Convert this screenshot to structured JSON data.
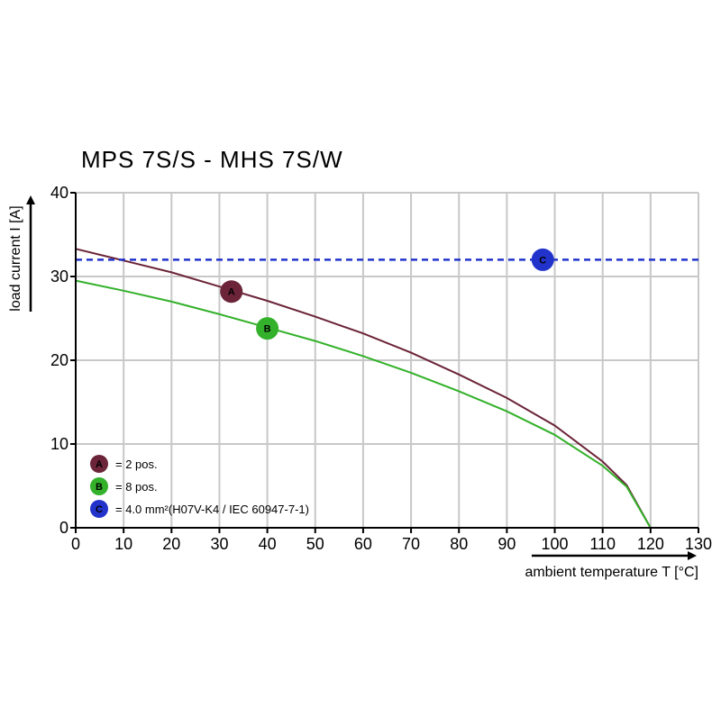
{
  "chart_data": {
    "type": "line",
    "title": "MPS 7S/S - MHS 7S/W",
    "xlabel": "ambient temperature T [°C]",
    "ylabel": "load current I [A]",
    "xlim": [
      0,
      130
    ],
    "ylim": [
      0,
      40
    ],
    "x_ticks": [
      0,
      10,
      20,
      30,
      40,
      50,
      60,
      70,
      80,
      90,
      100,
      110,
      120,
      130
    ],
    "y_ticks": [
      0,
      10,
      20,
      30,
      40
    ],
    "grid": true,
    "series": [
      {
        "name": "A",
        "marker_label": "A",
        "color": "#6b2438",
        "style": "solid",
        "x": [
          0,
          10,
          20,
          30,
          40,
          50,
          60,
          70,
          80,
          90,
          100,
          110,
          115,
          120
        ],
        "y": [
          33.3,
          31.9,
          30.5,
          28.8,
          27.1,
          25.2,
          23.2,
          20.9,
          18.3,
          15.5,
          12.2,
          7.9,
          5.1,
          0
        ],
        "marker_at": [
          32.5,
          28.2
        ]
      },
      {
        "name": "B",
        "marker_label": "B",
        "color": "#33b12a",
        "style": "solid",
        "x": [
          0,
          10,
          20,
          30,
          40,
          50,
          60,
          70,
          80,
          90,
          100,
          110,
          115,
          120
        ],
        "y": [
          29.5,
          28.3,
          27.0,
          25.5,
          23.9,
          22.3,
          20.5,
          18.5,
          16.3,
          13.9,
          11.1,
          7.4,
          4.9,
          0
        ],
        "marker_at": [
          40,
          23.8
        ]
      },
      {
        "name": "C",
        "marker_label": "C",
        "color": "#2233cc",
        "style": "dashed",
        "x": [
          0,
          130
        ],
        "y": [
          32,
          32
        ],
        "marker_at": [
          97.5,
          32
        ]
      }
    ],
    "legend": {
      "placement": "bottom-left",
      "entries": [
        {
          "marker": "A",
          "color": "#6b2438",
          "text": "= 2 pos."
        },
        {
          "marker": "B",
          "color": "#33b12a",
          "text": "= 8 pos."
        },
        {
          "marker": "C",
          "color": "#2233cc",
          "text": "= 4.0 mm²(H07V-K4 / IEC 60947-7-1)"
        }
      ]
    }
  }
}
